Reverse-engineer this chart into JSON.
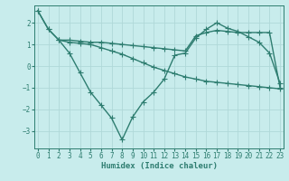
{
  "xlabel": "Humidex (Indice chaleur)",
  "background_color": "#c8ecec",
  "grid_color": "#b0d8d8",
  "line_color": "#2e7d70",
  "line1_x": [
    0,
    1,
    2,
    3,
    4,
    5,
    6,
    7,
    8,
    9,
    10,
    11,
    12,
    13,
    14,
    15,
    16,
    17,
    18,
    19,
    20,
    21,
    22,
    23
  ],
  "line1_y": [
    2.55,
    1.7,
    1.2,
    1.2,
    1.15,
    1.1,
    1.1,
    1.05,
    1.0,
    0.95,
    0.9,
    0.85,
    0.8,
    0.75,
    0.7,
    1.4,
    1.55,
    1.65,
    1.6,
    1.55,
    1.55,
    1.55,
    1.55,
    -1.0
  ],
  "line2_x": [
    2,
    3,
    4,
    5,
    6,
    7,
    8,
    9,
    10,
    11,
    12,
    13,
    14,
    15,
    16,
    17,
    18,
    19,
    20,
    21,
    22,
    23
  ],
  "line2_y": [
    1.2,
    1.1,
    1.05,
    1.0,
    0.85,
    0.7,
    0.55,
    0.35,
    0.15,
    -0.05,
    -0.2,
    -0.35,
    -0.5,
    -0.6,
    -0.7,
    -0.75,
    -0.8,
    -0.85,
    -0.9,
    -0.95,
    -1.0,
    -1.05
  ],
  "line3_x": [
    0,
    1,
    2,
    3,
    4,
    5,
    6,
    7,
    8,
    9,
    10,
    11,
    12,
    13,
    14,
    15,
    16,
    17,
    18,
    19,
    20,
    21,
    22,
    23
  ],
  "line3_y": [
    2.55,
    1.7,
    1.2,
    0.6,
    -0.3,
    -1.2,
    -1.8,
    -2.4,
    -3.4,
    -2.35,
    -1.65,
    -1.2,
    -0.6,
    0.5,
    0.6,
    1.3,
    1.7,
    2.0,
    1.75,
    1.6,
    1.35,
    1.1,
    0.6,
    -0.8
  ],
  "ylim": [
    -3.8,
    2.8
  ],
  "xlim": [
    -0.3,
    23.3
  ],
  "yticks": [
    -3,
    -2,
    -1,
    0,
    1,
    2
  ],
  "xticks": [
    0,
    1,
    2,
    3,
    4,
    5,
    6,
    7,
    8,
    9,
    10,
    11,
    12,
    13,
    14,
    15,
    16,
    17,
    18,
    19,
    20,
    21,
    22,
    23
  ],
  "marker": "+",
  "markersize": 4,
  "linewidth": 1.0,
  "tick_fontsize": 5.5,
  "xlabel_fontsize": 6.5
}
